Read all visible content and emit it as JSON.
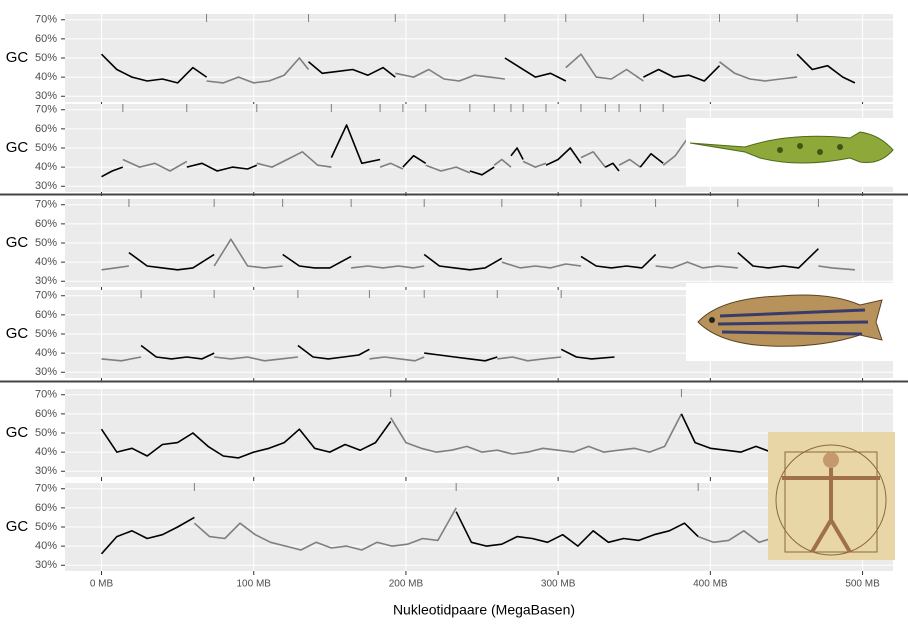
{
  "chart_data": {
    "type": "line",
    "x_label": "Nukleotidpaare (MegaBasen)",
    "y_label": "GC",
    "xlim": [
      -24,
      520
    ],
    "xticks": [
      {
        "value": 0,
        "label": "0 MB"
      },
      {
        "value": 100,
        "label": "100 MB"
      },
      {
        "value": 200,
        "label": "200 MB"
      },
      {
        "value": 300,
        "label": "300 MB"
      },
      {
        "value": 400,
        "label": "400 MB"
      },
      {
        "value": 500,
        "label": "500 MB"
      }
    ],
    "ylim": [
      27,
      73
    ],
    "yticks": [
      {
        "value": 30,
        "label": "30%"
      },
      {
        "value": 40,
        "label": "40%"
      },
      {
        "value": 50,
        "label": "50%"
      },
      {
        "value": 60,
        "label": "60%"
      },
      {
        "value": 70,
        "label": "70%"
      }
    ],
    "grid": true,
    "panels": [
      {
        "series": [
          {
            "color": "#000000",
            "x": [
              0,
              10,
              20,
              30,
              40,
              50,
              60,
              69
            ],
            "values": [
              52,
              44,
              40,
              38,
              39,
              37,
              45,
              40
            ]
          },
          {
            "color": "#7f7f7f",
            "x": [
              69,
              80,
              90,
              100,
              110,
              120,
              130,
              136
            ],
            "values": [
              38,
              37,
              40,
              37,
              38,
              41,
              50,
              44
            ]
          },
          {
            "color": "#000000",
            "x": [
              136,
              145,
              155,
              165,
              175,
              185,
              193
            ],
            "values": [
              48,
              42,
              43,
              44,
              41,
              45,
              40
            ]
          },
          {
            "color": "#7f7f7f",
            "x": [
              193,
              205,
              215,
              225,
              235,
              245,
              255,
              265
            ],
            "values": [
              42,
              40,
              44,
              39,
              38,
              41,
              40,
              39
            ]
          },
          {
            "color": "#000000",
            "x": [
              265,
              275,
              285,
              295,
              305
            ],
            "values": [
              50,
              45,
              40,
              42,
              38
            ]
          },
          {
            "color": "#7f7f7f",
            "x": [
              305,
              315,
              325,
              335,
              345,
              356
            ],
            "values": [
              45,
              52,
              40,
              39,
              44,
              38
            ]
          },
          {
            "color": "#000000",
            "x": [
              356,
              366,
              376,
              386,
              396,
              406
            ],
            "values": [
              40,
              44,
              40,
              41,
              38,
              46
            ]
          },
          {
            "color": "#7f7f7f",
            "x": [
              406,
              416,
              426,
              436,
              446,
              457
            ],
            "values": [
              48,
              42,
              39,
              38,
              39,
              40
            ]
          },
          {
            "color": "#000000",
            "x": [
              457,
              467,
              477,
              487,
              495
            ],
            "values": [
              52,
              44,
              46,
              40,
              37
            ]
          }
        ]
      },
      {
        "series": [
          {
            "color": "#000000",
            "x": [
              0,
              7,
              14
            ],
            "values": [
              35,
              38,
              40
            ]
          },
          {
            "color": "#7f7f7f",
            "x": [
              14,
              25,
              35,
              45,
              56
            ],
            "values": [
              44,
              40,
              42,
              38,
              43
            ]
          },
          {
            "color": "#000000",
            "x": [
              56,
              66,
              76,
              86,
              96,
              102
            ],
            "values": [
              40,
              42,
              38,
              40,
              39,
              41
            ]
          },
          {
            "color": "#7f7f7f",
            "x": [
              102,
              112,
              122,
              132,
              142,
              151
            ],
            "values": [
              42,
              40,
              44,
              48,
              41,
              40
            ]
          },
          {
            "color": "#000000",
            "x": [
              151,
              161,
              171,
              183
            ],
            "values": [
              45,
              62,
              42,
              44
            ]
          },
          {
            "color": "#7f7f7f",
            "x": [
              183,
              190,
              198
            ],
            "values": [
              40,
              42,
              39
            ]
          },
          {
            "color": "#000000",
            "x": [
              198,
              205,
              213
            ],
            "values": [
              40,
              46,
              42
            ]
          },
          {
            "color": "#7f7f7f",
            "x": [
              213,
              223,
              233,
              242
            ],
            "values": [
              41,
              38,
              40,
              37
            ]
          },
          {
            "color": "#000000",
            "x": [
              242,
              250,
              258
            ],
            "values": [
              38,
              36,
              40
            ]
          },
          {
            "color": "#7f7f7f",
            "x": [
              258,
              263,
              269
            ],
            "values": [
              41,
              44,
              40
            ]
          },
          {
            "color": "#000000",
            "x": [
              269,
              273,
              277
            ],
            "values": [
              46,
              50,
              44
            ]
          },
          {
            "color": "#7f7f7f",
            "x": [
              277,
              285,
              292
            ],
            "values": [
              43,
              40,
              42
            ]
          },
          {
            "color": "#000000",
            "x": [
              292,
              300,
              308,
              315
            ],
            "values": [
              41,
              44,
              50,
              42
            ]
          },
          {
            "color": "#7f7f7f",
            "x": [
              315,
              323,
              331
            ],
            "values": [
              45,
              48,
              40
            ]
          },
          {
            "color": "#000000",
            "x": [
              331,
              336,
              340
            ],
            "values": [
              40,
              42,
              38
            ]
          },
          {
            "color": "#7f7f7f",
            "x": [
              340,
              347,
              354
            ],
            "values": [
              41,
              44,
              40
            ]
          },
          {
            "color": "#000000",
            "x": [
              354,
              361,
              369
            ],
            "values": [
              40,
              47,
              42
            ]
          },
          {
            "color": "#7f7f7f",
            "x": [
              369,
              377,
              385
            ],
            "values": [
              41,
              46,
              55
            ]
          }
        ]
      },
      {
        "series": [
          {
            "color": "#7f7f7f",
            "x": [
              0,
              9,
              18
            ],
            "values": [
              36,
              37,
              38
            ]
          },
          {
            "color": "#000000",
            "x": [
              18,
              30,
              40,
              50,
              60,
              74
            ],
            "values": [
              45,
              38,
              37,
              36,
              37,
              44
            ]
          },
          {
            "color": "#7f7f7f",
            "x": [
              74,
              85,
              96,
              107,
              119
            ],
            "values": [
              38,
              52,
              38,
              37,
              38
            ]
          },
          {
            "color": "#000000",
            "x": [
              119,
              130,
              140,
              150,
              164
            ],
            "values": [
              44,
              38,
              37,
              37,
              43
            ]
          },
          {
            "color": "#7f7f7f",
            "x": [
              164,
              175,
              185,
              195,
              205,
              212
            ],
            "values": [
              37,
              38,
              37,
              38,
              37,
              38
            ]
          },
          {
            "color": "#000000",
            "x": [
              212,
              222,
              232,
              242,
              252,
              263
            ],
            "values": [
              44,
              38,
              37,
              36,
              37,
              42
            ]
          },
          {
            "color": "#7f7f7f",
            "x": [
              263,
              275,
              285,
              295,
              305,
              315
            ],
            "values": [
              40,
              37,
              38,
              37,
              39,
              38
            ]
          },
          {
            "color": "#000000",
            "x": [
              315,
              325,
              335,
              345,
              355,
              364
            ],
            "values": [
              43,
              38,
              37,
              38,
              37,
              44
            ]
          },
          {
            "color": "#7f7f7f",
            "x": [
              364,
              375,
              385,
              395,
              405,
              418
            ],
            "values": [
              38,
              37,
              40,
              37,
              38,
              37
            ]
          },
          {
            "color": "#000000",
            "x": [
              418,
              428,
              438,
              448,
              458,
              471
            ],
            "values": [
              45,
              38,
              37,
              38,
              37,
              47
            ]
          },
          {
            "color": "#7f7f7f",
            "x": [
              471,
              480,
              495
            ],
            "values": [
              38,
              37,
              36
            ]
          }
        ]
      },
      {
        "series": [
          {
            "color": "#7f7f7f",
            "x": [
              0,
              13,
              26
            ],
            "values": [
              37,
              36,
              38
            ]
          },
          {
            "color": "#000000",
            "x": [
              26,
              36,
              46,
              56,
              66,
              74
            ],
            "values": [
              44,
              38,
              37,
              38,
              37,
              40
            ]
          },
          {
            "color": "#7f7f7f",
            "x": [
              74,
              85,
              96,
              107,
              118,
              129
            ],
            "values": [
              38,
              37,
              38,
              36,
              37,
              38
            ]
          },
          {
            "color": "#000000",
            "x": [
              129,
              139,
              149,
              159,
              169,
              176
            ],
            "values": [
              44,
              38,
              37,
              38,
              39,
              42
            ]
          },
          {
            "color": "#7f7f7f",
            "x": [
              176,
              186,
              196,
              206,
              212
            ],
            "values": [
              37,
              38,
              37,
              36,
              38
            ]
          },
          {
            "color": "#000000",
            "x": [
              212,
              222,
              232,
              242,
              252,
              260
            ],
            "values": [
              40,
              39,
              38,
              37,
              36,
              38
            ]
          },
          {
            "color": "#7f7f7f",
            "x": [
              260,
              270,
              280,
              290,
              302
            ],
            "values": [
              37,
              38,
              36,
              37,
              38
            ]
          },
          {
            "color": "#000000",
            "x": [
              302,
              312,
              322,
              337
            ],
            "values": [
              42,
              38,
              37,
              38
            ]
          }
        ]
      },
      {
        "series": [
          {
            "color": "#000000",
            "x": [
              0,
              10,
              20,
              30,
              40,
              50,
              60,
              70,
              80,
              90,
              100,
              110,
              120,
              130,
              140,
              150,
              160,
              170,
              180,
              190
            ],
            "values": [
              52,
              40,
              42,
              38,
              44,
              45,
              50,
              43,
              38,
              37,
              40,
              42,
              45,
              52,
              42,
              40,
              44,
              41,
              45,
              56
            ]
          },
          {
            "color": "#7f7f7f",
            "x": [
              190,
              200,
              210,
              220,
              230,
              240,
              250,
              260,
              270,
              280,
              290,
              300,
              310,
              320,
              330,
              340,
              350,
              360,
              370,
              381
            ],
            "values": [
              58,
              45,
              42,
              40,
              41,
              43,
              40,
              41,
              39,
              40,
              42,
              41,
              40,
              43,
              40,
              41,
              42,
              40,
              43,
              60
            ]
          },
          {
            "color": "#000000",
            "x": [
              381,
              390,
              400,
              410,
              420,
              430,
              440
            ],
            "values": [
              60,
              45,
              42,
              41,
              40,
              43,
              40
            ]
          }
        ]
      },
      {
        "series": [
          {
            "color": "#000000",
            "x": [
              0,
              10,
              20,
              30,
              40,
              50,
              61
            ],
            "values": [
              36,
              45,
              48,
              44,
              46,
              50,
              55
            ]
          },
          {
            "color": "#7f7f7f",
            "x": [
              61,
              71,
              81,
              91,
              101,
              111,
              121,
              131,
              141,
              151,
              161,
              171,
              181,
              191,
              201,
              211,
              221,
              233
            ],
            "values": [
              52,
              45,
              44,
              52,
              46,
              42,
              40,
              38,
              42,
              39,
              40,
              38,
              42,
              40,
              41,
              44,
              43,
              60
            ]
          },
          {
            "color": "#000000",
            "x": [
              233,
              243,
              253,
              263,
              273,
              283,
              293,
              303,
              313,
              323,
              333,
              343,
              353,
              363,
              373,
              383,
              392
            ],
            "values": [
              58,
              42,
              40,
              41,
              45,
              44,
              42,
              46,
              40,
              48,
              42,
              44,
              43,
              46,
              48,
              52,
              45
            ]
          },
          {
            "color": "#7f7f7f",
            "x": [
              392,
              402,
              412,
              422,
              432,
              440
            ],
            "values": [
              45,
              42,
              43,
              48,
              42,
              44
            ]
          }
        ]
      }
    ]
  }
}
